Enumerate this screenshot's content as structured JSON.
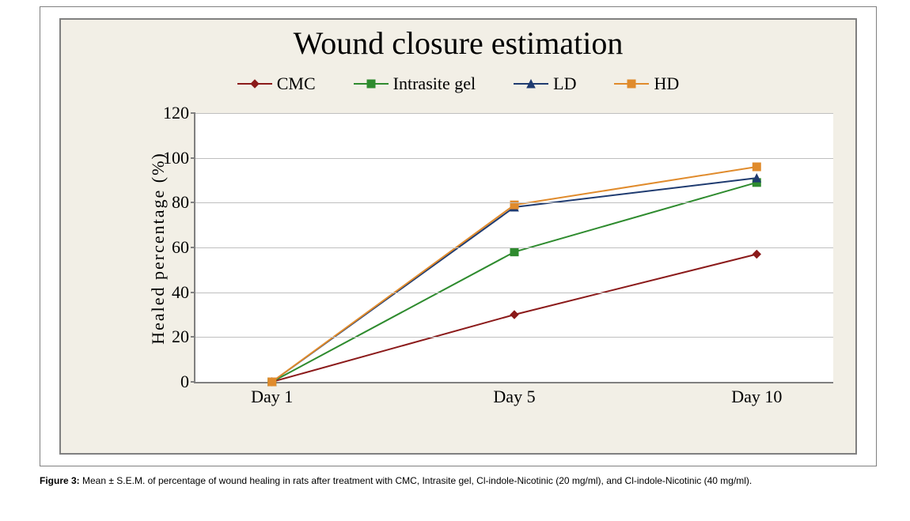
{
  "chart": {
    "type": "line",
    "title": "Wound closure estimation",
    "title_fontsize": 40,
    "background_color": "#f2efe6",
    "plot_background": "#ffffff",
    "border_color": "#808080",
    "grid_color": "#bfbfbf",
    "ylabel": "Healed  percentage  (%)",
    "label_fontsize": 22,
    "ylim": [
      0,
      120
    ],
    "ytick_step": 20,
    "categories": [
      "Day 1",
      "Day 5",
      "Day 10"
    ],
    "category_positions": [
      0.12,
      0.5,
      0.88
    ],
    "series": [
      {
        "name": "CMC",
        "color": "#8b1a1a",
        "marker": "diamond",
        "marker_fill": "#8b1a1a",
        "values": [
          0,
          30,
          57
        ]
      },
      {
        "name": "Intrasite gel",
        "color": "#2e8b2e",
        "marker": "square",
        "marker_fill": "#2e8b2e",
        "values": [
          0,
          58,
          89
        ]
      },
      {
        "name": "LD",
        "color": "#1f3b70",
        "marker": "triangle",
        "marker_fill": "#1f3b70",
        "values": [
          0,
          78,
          91
        ]
      },
      {
        "name": "HD",
        "color": "#e08b2c",
        "marker": "square",
        "marker_fill": "#e08b2c",
        "values": [
          0,
          79,
          96
        ]
      }
    ],
    "line_width": 2,
    "marker_size": 10,
    "legend_fontsize": 22
  },
  "caption": {
    "label": "Figure 3:",
    "text": " Mean ± S.E.M. of percentage of wound healing in rats after treatment with CMC, Intrasite gel, Cl-indole-Nicotinic (20 mg/ml), and Cl-indole-Nicotinic (40 mg/ml)."
  }
}
